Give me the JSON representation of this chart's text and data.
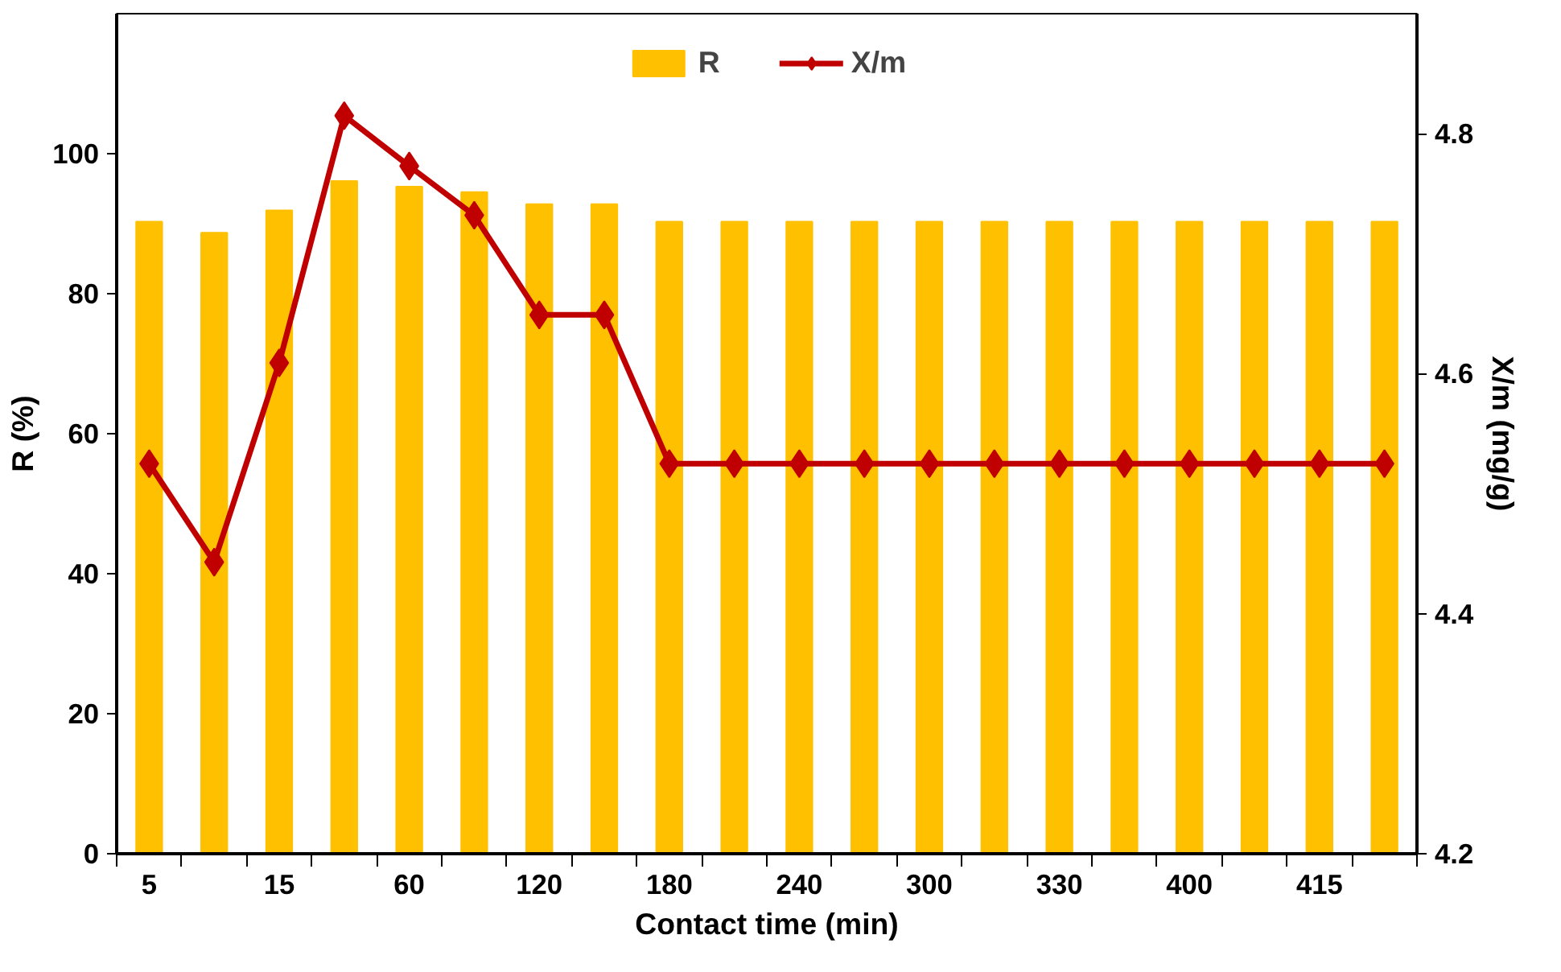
{
  "chart_data": {
    "type": "bar",
    "xlabel": "Contact time (min)",
    "ylabel": "R (%)",
    "y2label": "X/m (mg/g)",
    "categories": [
      "5",
      null,
      "15",
      null,
      "60",
      null,
      "120",
      null,
      "180",
      null,
      "240",
      null,
      "300",
      null,
      "330",
      null,
      "400",
      null,
      "415",
      null
    ],
    "series": [
      {
        "name": "R",
        "color": "#ffc000",
        "values": [
          90.3,
          88.7,
          91.9,
          96.1,
          95.3,
          94.5,
          92.8,
          92.8,
          90.3,
          90.3,
          90.3,
          90.3,
          90.3,
          90.3,
          90.3,
          90.3,
          90.3,
          90.3,
          90.3,
          90.3
        ]
      },
      {
        "name": "X/m",
        "type": "line",
        "axis": "y2",
        "color": "#c00000",
        "marker": "diamond",
        "values": [
          4.525,
          4.443,
          4.609,
          4.815,
          4.773,
          4.732,
          4.649,
          4.649,
          4.525,
          4.525,
          4.525,
          4.525,
          4.525,
          4.525,
          4.525,
          4.525,
          4.525,
          4.525,
          4.525,
          4.525
        ]
      }
    ],
    "ylim": [
      0,
      120
    ],
    "yticks": [
      0,
      20,
      40,
      60,
      80,
      100
    ],
    "y2lim": [
      4.2,
      4.9
    ],
    "y2ticks": [
      4.2,
      4.4,
      4.6,
      4.8
    ],
    "grid": false,
    "legend": "top"
  }
}
